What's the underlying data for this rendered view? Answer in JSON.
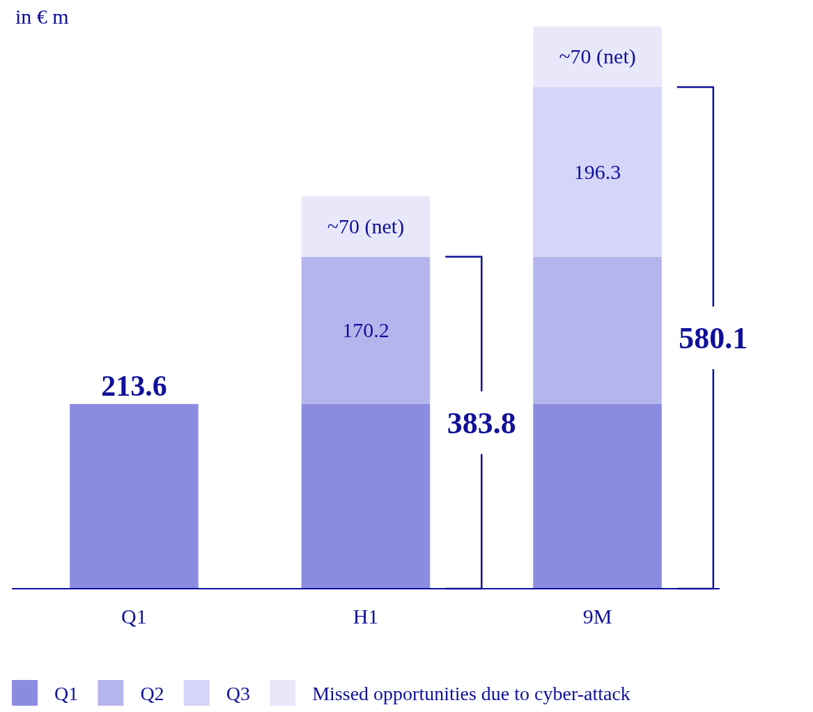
{
  "chart_data": {
    "type": "bar",
    "stacked": true,
    "ylabel": "in € m",
    "categories": [
      "Q1",
      "H1",
      "9M"
    ],
    "series": [
      {
        "name": "Q1",
        "color": "#8b8ce0",
        "values": [
          213.6,
          213.6,
          213.6
        ],
        "value_labels": [
          "213.6",
          null,
          null
        ]
      },
      {
        "name": "Q2",
        "color": "#b5b5ee",
        "values": [
          null,
          170.2,
          170.2
        ],
        "value_labels": [
          null,
          "170.2",
          null
        ]
      },
      {
        "name": "Q3",
        "color": "#d4d5f8",
        "values": [
          null,
          null,
          196.3
        ],
        "value_labels": [
          null,
          null,
          "196.3"
        ]
      },
      {
        "name": "Missed opportunities due to cyber-attack",
        "color": "#e8e8fa",
        "values": [
          null,
          70,
          70
        ],
        "value_labels": [
          null,
          "~70 (net)",
          "~70 (net)"
        ]
      }
    ],
    "annotations": [
      "383.8",
      "580.1"
    ],
    "legend": "bottom"
  }
}
